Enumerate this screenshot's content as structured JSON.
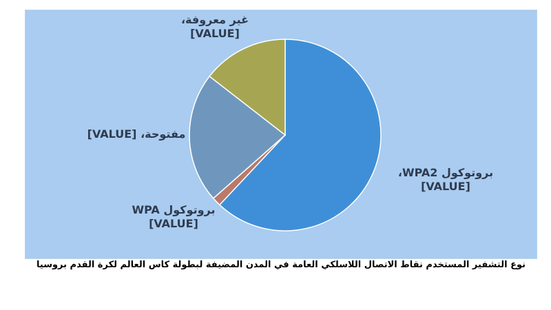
{
  "chart_data": {
    "type": "pie",
    "title": "نوع التشفير المستخدم نقاط الاتصال اللاسلكي العامة في المدن المضيفة لبطولة كاس العالم لكرة القدم بروسيا",
    "slices": [
      {
        "label": "بروتوكول WPA2،",
        "value_text": "[VALUE]",
        "value": 62,
        "color": "#3f8fd8"
      },
      {
        "label": "بروتوكول WPA",
        "value_text": "[VALUE]",
        "value": 1.5,
        "color": "#b97a6a"
      },
      {
        "label": "مفتوحة،",
        "value_text": "[VALUE]",
        "value": 22,
        "color": "#6f97be"
      },
      {
        "label": "غير معروفة،",
        "value_text": "[VALUE]",
        "value": 14.5,
        "color": "#a6a652"
      }
    ],
    "start_slice_top": true,
    "legend": "none",
    "grid": false
  },
  "colors": {
    "plot_background": "#a9ccf0",
    "label_text": "#2f3b4e"
  }
}
